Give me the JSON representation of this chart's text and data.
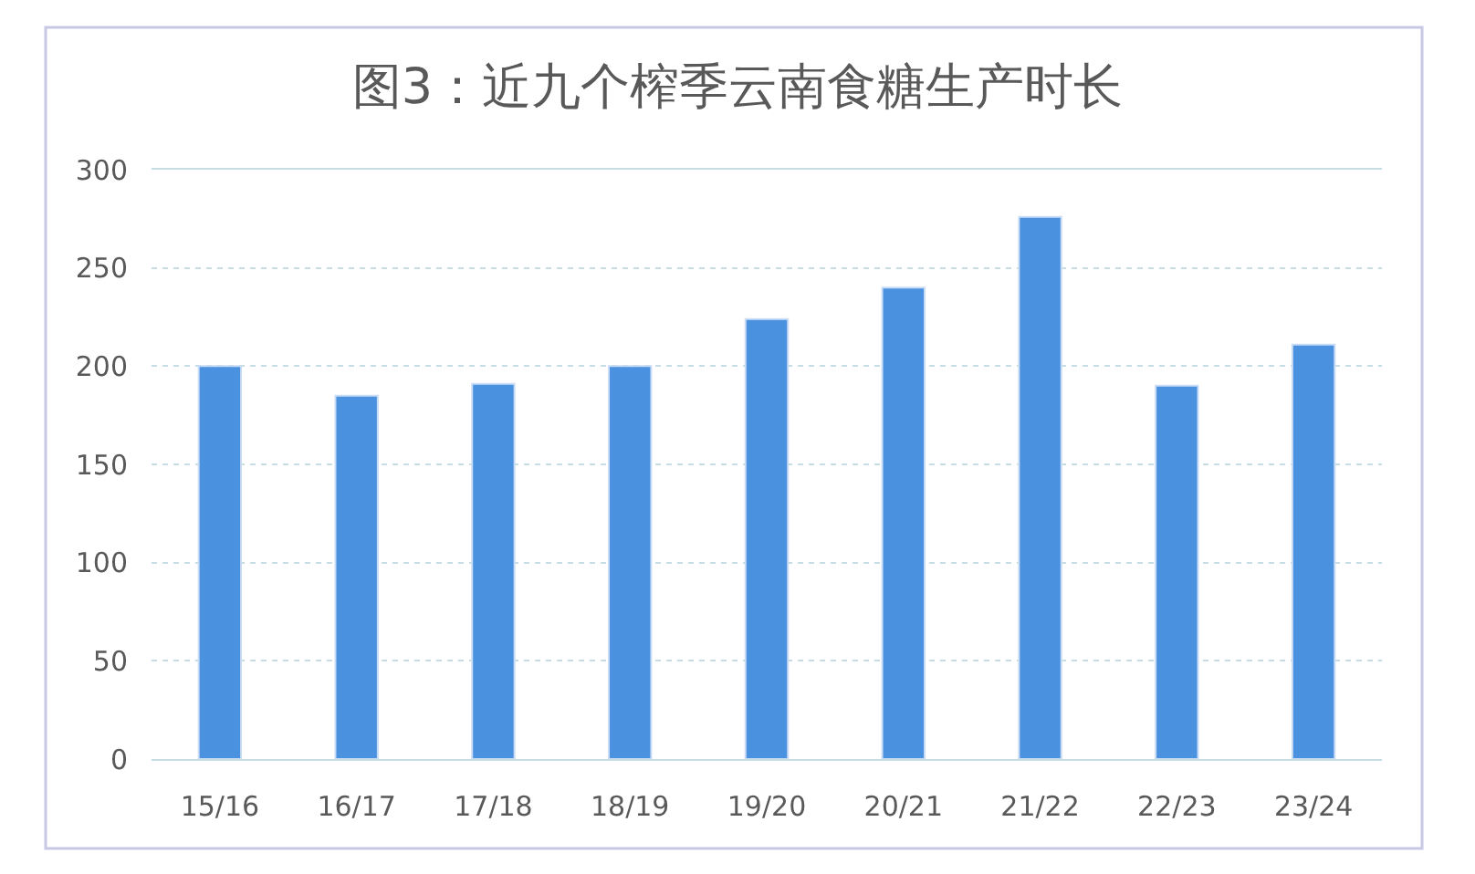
{
  "chart_data": {
    "type": "bar",
    "title": "图3：近九个榨季云南食糖生产时长",
    "categories": [
      "15/16",
      "16/17",
      "17/18",
      "18/19",
      "19/20",
      "20/21",
      "21/22",
      "22/23",
      "23/24"
    ],
    "values": [
      200,
      185,
      191,
      200,
      224,
      240,
      276,
      190,
      211
    ],
    "color": "#4a92e0",
    "ylim": [
      0,
      300
    ],
    "yticks": [
      0,
      50,
      100,
      150,
      200,
      250,
      300
    ],
    "grid": "y"
  }
}
